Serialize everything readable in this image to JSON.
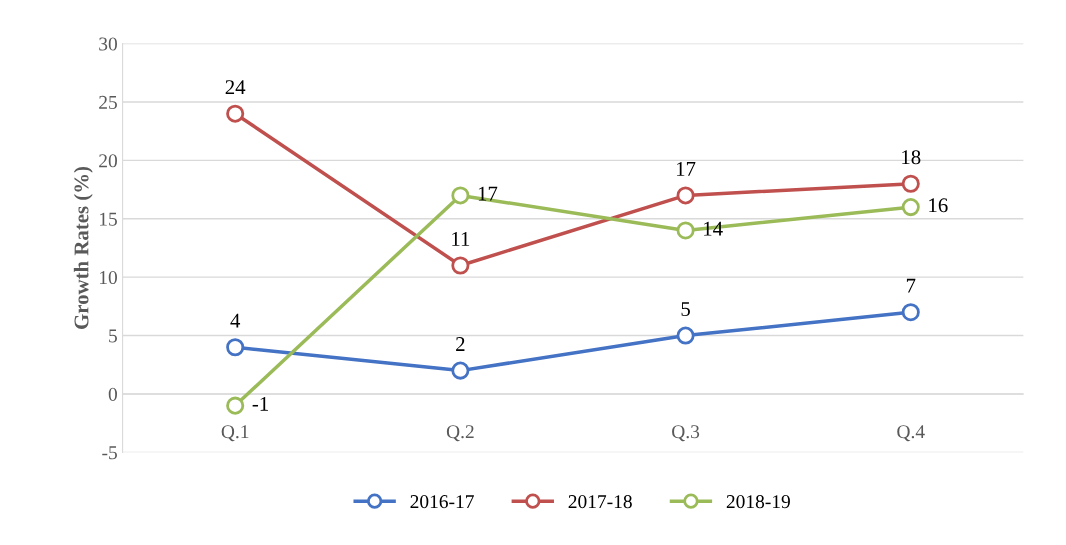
{
  "chart_data": {
    "type": "line",
    "ylabel": "Growth Rates (%)",
    "categories": [
      "Q.1",
      "Q.2",
      "Q.3",
      "Q.4"
    ],
    "series": [
      {
        "name": "2016-17",
        "color": "#4472c4",
        "values": [
          4,
          2,
          5,
          7
        ]
      },
      {
        "name": "2017-18",
        "color": "#c0504d",
        "values": [
          24,
          11,
          17,
          18
        ]
      },
      {
        "name": "2018-19",
        "color": "#9bbb59",
        "values": [
          -1,
          17,
          14,
          16
        ]
      }
    ],
    "ylim": [
      -5,
      30
    ],
    "yticks": [
      -5,
      0,
      5,
      10,
      15,
      20,
      25,
      30
    ],
    "grid": "y",
    "legend": "bottom",
    "marker": "circle",
    "line_style": "solid",
    "data_labels": true
  }
}
